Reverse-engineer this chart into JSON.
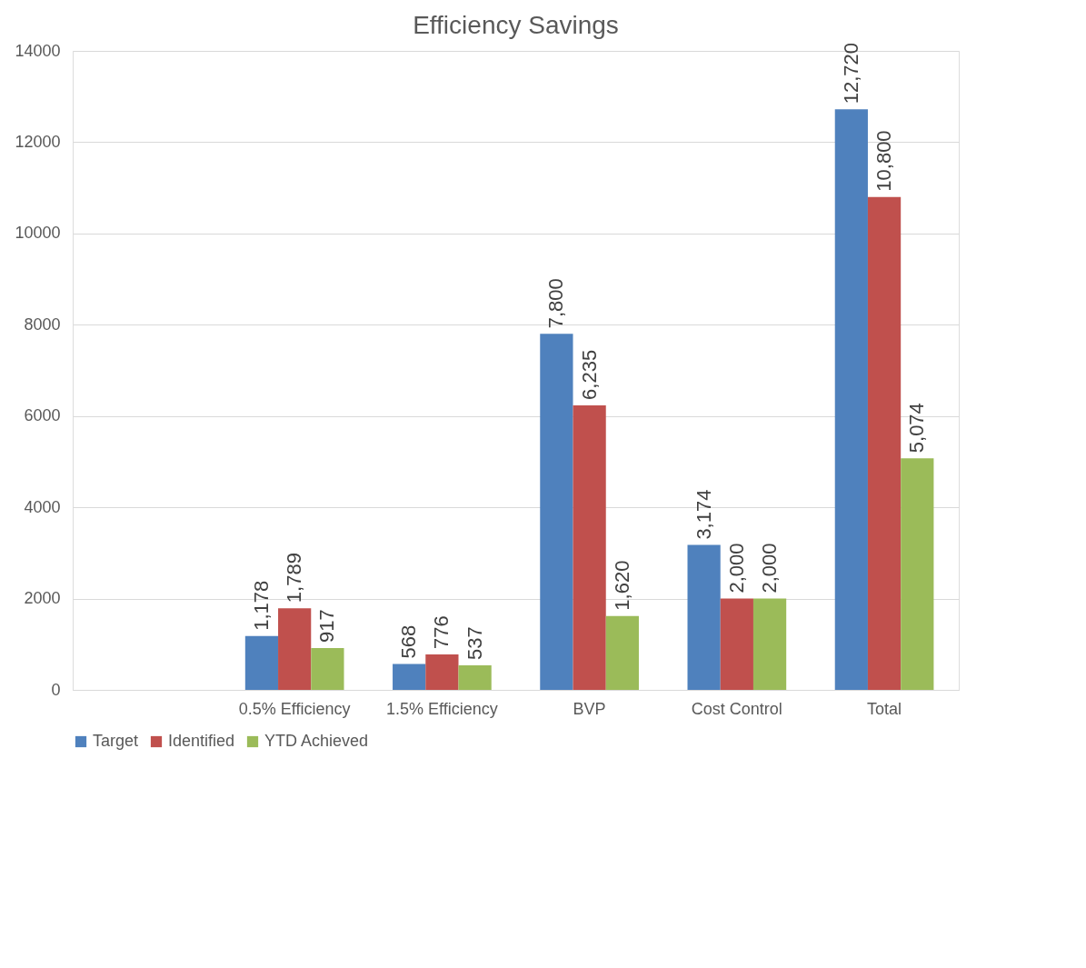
{
  "chart_data": {
    "type": "bar",
    "title": "Efficiency Savings",
    "categories": [
      null,
      "0.5% Efficiency",
      "1.5% Efficiency",
      "BVP",
      "Cost Control",
      "Total"
    ],
    "series": [
      {
        "name": "Target",
        "color": "#4f81bd",
        "values": [
          null,
          1178,
          568,
          7800,
          3174,
          12720
        ],
        "value_labels": [
          null,
          "1,178",
          "568",
          "7,800",
          "3,174",
          "12,720"
        ]
      },
      {
        "name": "Identified",
        "color": "#c0504d",
        "values": [
          null,
          1789,
          776,
          6235,
          2000,
          10800
        ],
        "value_labels": [
          null,
          "1,789",
          "776",
          "6,235",
          "2,000",
          "10,800"
        ]
      },
      {
        "name": "YTD Achieved",
        "color": "#9bbb59",
        "values": [
          null,
          917,
          537,
          1620,
          2000,
          5074
        ],
        "value_labels": [
          null,
          "917",
          "537",
          "1,620",
          "2,000",
          "5,074"
        ]
      }
    ],
    "ylim": [
      0,
      14000
    ],
    "yticks": [
      0,
      2000,
      4000,
      6000,
      8000,
      10000,
      12000,
      14000
    ],
    "grid": "y",
    "legend": "bottom"
  }
}
